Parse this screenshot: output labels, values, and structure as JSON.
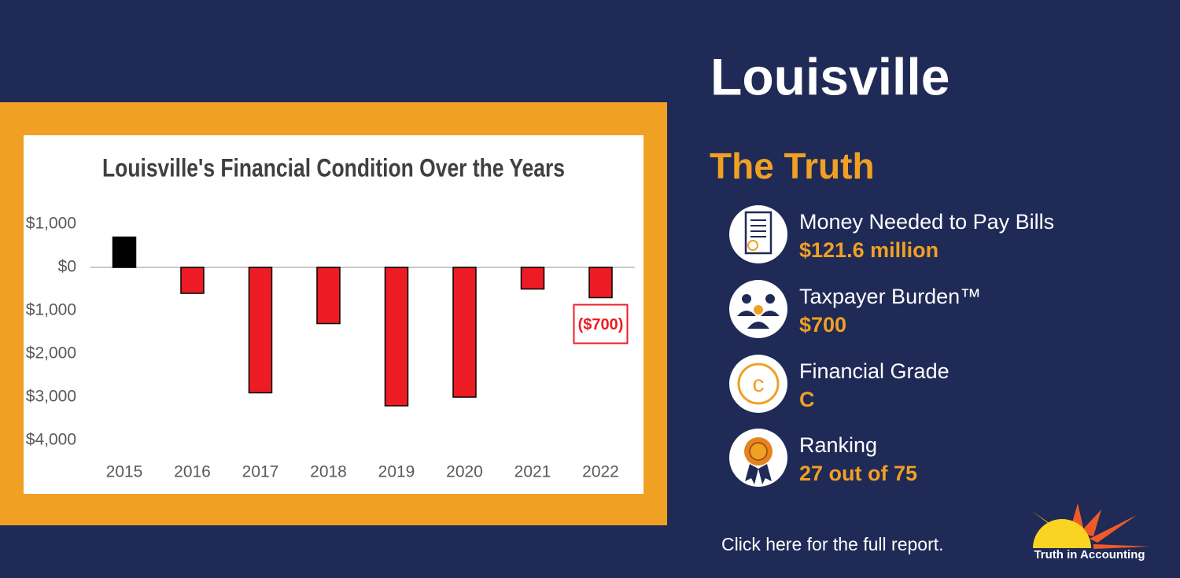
{
  "header": {
    "title": "Louisville",
    "subtitle": "The Truth"
  },
  "chart_data": {
    "type": "bar",
    "title": "Louisville's Financial Condition Over the Years",
    "categories": [
      "2015",
      "2016",
      "2017",
      "2018",
      "2019",
      "2020",
      "2021",
      "2022"
    ],
    "values": [
      700,
      -600,
      -2900,
      -1300,
      -3200,
      -3000,
      -500,
      -700
    ],
    "value_labels": [
      null,
      null,
      null,
      null,
      null,
      null,
      null,
      "($700)"
    ],
    "colors": [
      "#000000",
      "#ed1c24",
      "#ed1c24",
      "#ed1c24",
      "#ed1c24",
      "#ed1c24",
      "#ed1c24",
      "#ed1c24"
    ],
    "ylim": [
      -4000,
      1000
    ],
    "yticks": [
      {
        "value": 1000,
        "label": "$1,000"
      },
      {
        "value": 0,
        "label": "$0"
      },
      {
        "value": -1000,
        "label": "$1,000"
      },
      {
        "value": -2000,
        "label": "$2,000"
      },
      {
        "value": -3000,
        "label": "$3,000"
      },
      {
        "value": -4000,
        "label": "$4,000"
      }
    ],
    "grid": false
  },
  "metrics": [
    {
      "label": "Money Needed to Pay Bills",
      "value": "$121.6 million"
    },
    {
      "label": "Taxpayer Burden™",
      "value": "$700"
    },
    {
      "label": "Financial Grade",
      "value": "C"
    },
    {
      "label": "Ranking",
      "value": "27 out of 75"
    }
  ],
  "footer": {
    "link": "Click here for the full report.",
    "logo": "Truth in Accounting"
  }
}
